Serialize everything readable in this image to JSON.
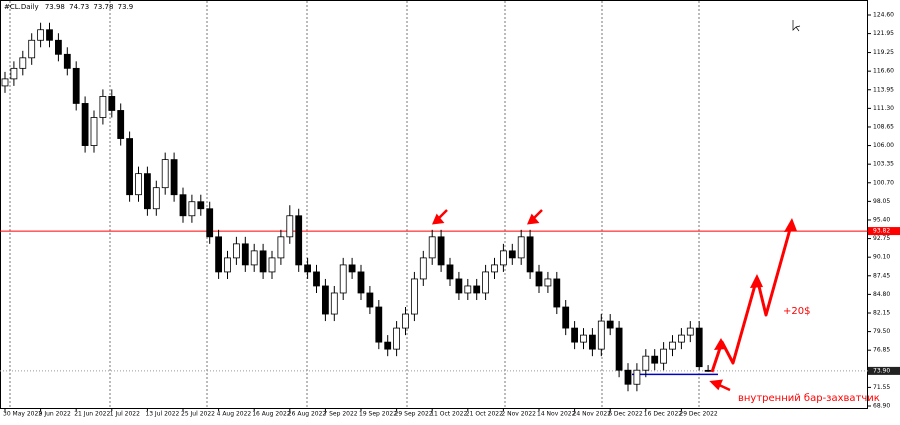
{
  "chart_data": {
    "type": "candlestick",
    "symbol": "#CL.Daily",
    "categories": [
      "30 May 2022",
      null,
      null,
      null,
      "9 Jun 2022",
      null,
      null,
      null,
      "21 Jun 2022",
      null,
      null,
      null,
      "1 Jul 2022",
      null,
      null,
      null,
      "13 Jul 2022",
      null,
      null,
      null,
      "25 Jul 2022",
      null,
      null,
      null,
      "4 Aug 2022",
      null,
      null,
      null,
      "16 Aug 2022",
      null,
      null,
      null,
      "26 Aug 2022",
      null,
      null,
      null,
      "7 Sep 2022",
      null,
      null,
      null,
      "19 Sep 2022",
      null,
      null,
      null,
      "29 Sep 2022",
      null,
      null,
      null,
      "11 Oct 2022",
      null,
      null,
      null,
      "21 Oct 2022",
      null,
      null,
      null,
      "2 Nov 2022",
      null,
      null,
      null,
      "14 Nov 2022",
      null,
      null,
      null,
      "24 Nov 2022",
      null,
      null,
      null,
      "6 Dec 2022",
      null,
      null,
      null,
      "16 Dec 2022",
      null,
      null,
      null,
      "29 Dec 2022",
      null,
      null,
      null
    ],
    "open": [
      114.5,
      115.5,
      117,
      118.5,
      121,
      122.5,
      121,
      119,
      117,
      112,
      106,
      110,
      113,
      111,
      107,
      99,
      102,
      97,
      100,
      104,
      99,
      96,
      98,
      97,
      93,
      88,
      90,
      92,
      89,
      91,
      88,
      90,
      93,
      96,
      89,
      88,
      86,
      82,
      85,
      89,
      88,
      85,
      83,
      78,
      77,
      80,
      82,
      87,
      90,
      93,
      89,
      87,
      85,
      86,
      85,
      88,
      89,
      91,
      90,
      93,
      88,
      86,
      87,
      83,
      80,
      78,
      79,
      77,
      81,
      80,
      74,
      72,
      74,
      76,
      75,
      77,
      78,
      79,
      80,
      73.98
    ],
    "high": [
      116.5,
      118,
      119.5,
      122,
      123.5,
      123.5,
      122,
      120,
      118,
      113,
      111,
      114,
      114,
      112,
      108,
      103,
      103,
      101,
      105,
      105,
      100,
      99,
      99,
      98,
      94,
      91,
      93,
      93,
      92,
      92,
      91,
      94,
      97.5,
      97,
      90,
      89,
      87,
      86,
      90,
      90,
      89,
      86,
      84,
      79,
      81,
      83,
      88,
      91,
      94,
      94,
      90,
      88,
      87,
      87,
      89,
      90,
      92,
      92,
      94,
      94,
      89,
      88,
      88,
      84,
      81,
      80,
      80,
      82,
      82,
      81,
      75,
      75,
      77,
      77,
      78,
      79,
      80,
      81,
      81,
      74.73
    ],
    "low": [
      113.5,
      114.5,
      116,
      117.5,
      120,
      120,
      118,
      116,
      111,
      105,
      105,
      109,
      110,
      106,
      98,
      98,
      96,
      96,
      99,
      98,
      95,
      95,
      96,
      92,
      87,
      87,
      89,
      88,
      88,
      87,
      87,
      89,
      92,
      88,
      87,
      85,
      81,
      81,
      84,
      87,
      84,
      82,
      77,
      76,
      76,
      79,
      81,
      86,
      89,
      88,
      86,
      84,
      84,
      84,
      84,
      87,
      88,
      89,
      89,
      87,
      85,
      85,
      82,
      79,
      77,
      77,
      76,
      76,
      79,
      73,
      71,
      71,
      73,
      74,
      74,
      76,
      77,
      78,
      74,
      73.78
    ],
    "close": [
      115.5,
      117,
      118.5,
      121,
      122.5,
      121,
      119,
      117,
      112,
      106,
      110,
      113,
      111,
      107,
      99,
      102,
      97,
      100,
      104,
      99,
      96,
      98,
      97,
      93,
      88,
      90,
      92,
      89,
      91,
      88,
      90,
      93,
      96,
      89,
      88,
      86,
      82,
      85,
      89,
      88,
      85,
      83,
      78,
      77,
      80,
      82,
      87,
      90,
      93,
      89,
      87,
      85,
      86,
      85,
      88,
      89,
      91,
      90,
      93,
      88,
      86,
      87,
      83,
      80,
      78,
      79,
      77,
      81,
      80,
      74,
      72,
      74,
      76,
      75,
      77,
      78,
      79,
      80,
      74.5,
      73.9
    ],
    "ylim": [
      68.9,
      124.6
    ],
    "yticks": [
      {
        "value": 124.6,
        "label": "124.60"
      },
      {
        "value": 121.95,
        "label": "121.95"
      },
      {
        "value": 119.25,
        "label": "119.25"
      },
      {
        "value": 116.6,
        "label": "116.60"
      },
      {
        "value": 113.95,
        "label": "113.95"
      },
      {
        "value": 111.3,
        "label": "111.30"
      },
      {
        "value": 108.65,
        "label": "108.65"
      },
      {
        "value": 106,
        "label": "106.00"
      },
      {
        "value": 103.35,
        "label": "103.35"
      },
      {
        "value": 100.7,
        "label": "100.70"
      },
      {
        "value": 98.05,
        "label": "98.05"
      },
      {
        "value": 95.4,
        "label": "95.40"
      },
      {
        "value": 92.75,
        "label": "92.75"
      },
      {
        "value": 90.1,
        "label": "90.10"
      },
      {
        "value": 87.45,
        "label": "87.45"
      },
      {
        "value": 84.8,
        "label": "84.80"
      },
      {
        "value": 82.15,
        "label": "82.15"
      },
      {
        "value": 79.5,
        "label": "79.50"
      },
      {
        "value": 76.85,
        "label": "76.85"
      },
      {
        "value": 71.55,
        "label": "71.55"
      },
      {
        "value": 68.9,
        "label": "68.90"
      }
    ],
    "level": {
      "value": 93.82,
      "label": "93.82",
      "color": "#ff0000"
    },
    "inside_bar_line": {
      "value": 73.4,
      "color": "#0000cc"
    },
    "last_price_label": "73.90",
    "annotations": {
      "target": "+20$",
      "note": "внутренний бар-захватчик"
    }
  }
}
